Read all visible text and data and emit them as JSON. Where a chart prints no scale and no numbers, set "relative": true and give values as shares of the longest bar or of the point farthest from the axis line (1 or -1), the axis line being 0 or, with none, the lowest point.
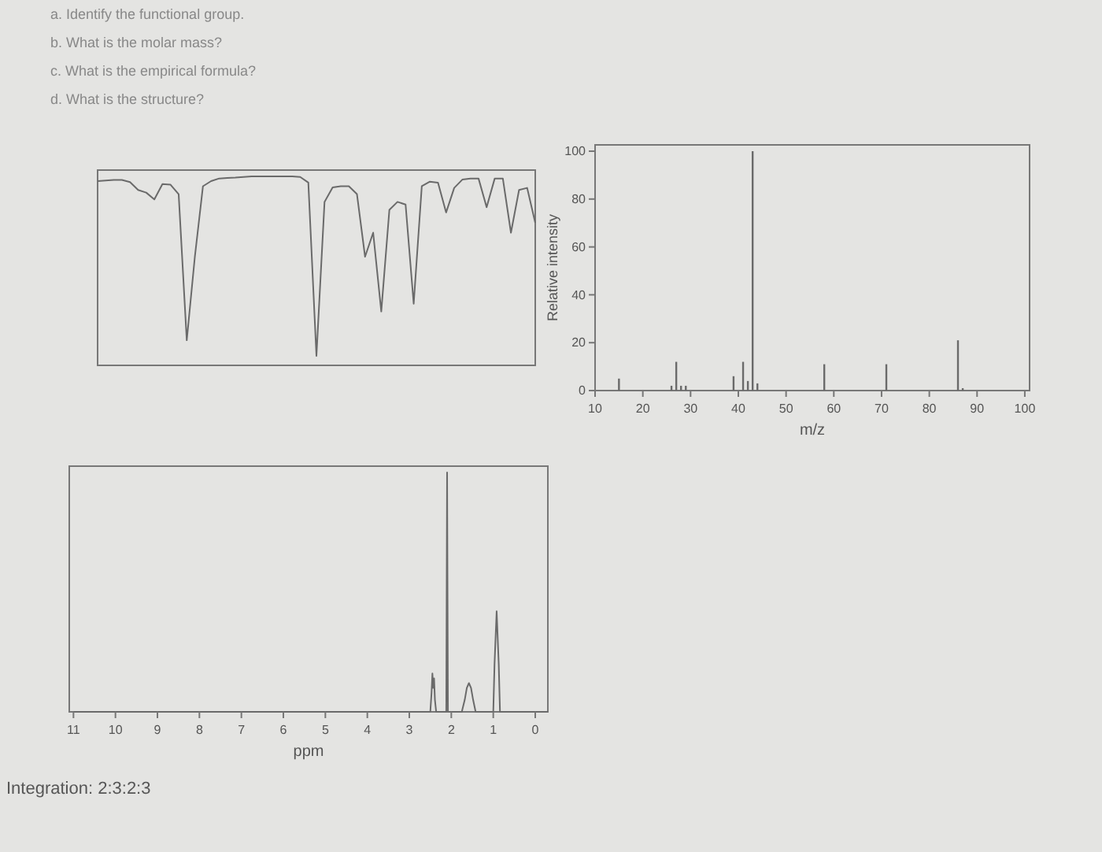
{
  "chart_data": [
    {
      "type": "line",
      "relative": true,
      "tick_labels": false,
      "color": "#6a6a6a",
      "annotations": [
        "a. Identify the functional group.",
        "b. What is the molar mass?",
        "c. What is the empirical formula?",
        "d. What is the structure?"
      ],
      "categories": [
        null,
        null,
        null,
        null,
        null,
        null,
        null,
        null,
        null,
        null,
        null,
        null,
        null,
        null,
        null,
        null,
        null,
        null,
        null,
        null,
        null,
        null,
        null,
        null,
        null,
        null,
        null,
        null,
        null,
        null,
        null,
        null,
        null,
        null,
        null,
        null,
        null,
        null,
        null,
        null,
        null,
        null,
        null,
        null,
        null,
        null,
        null,
        null,
        null,
        null,
        null,
        null,
        null,
        null,
        null
      ],
      "values": [
        0.975,
        0.978,
        0.981,
        0.981,
        0.97,
        0.928,
        0.914,
        0.878,
        0.959,
        0.956,
        0.906,
        0.133,
        0.575,
        0.948,
        0.975,
        0.989,
        0.992,
        0.994,
        0.997,
        1,
        1,
        1,
        1,
        1,
        1,
        0.997,
        0.967,
        0.05,
        0.865,
        0.942,
        0.948,
        0.948,
        0.906,
        0.575,
        0.702,
        0.285,
        0.823,
        0.865,
        0.851,
        0.326,
        0.948,
        0.972,
        0.967,
        0.809,
        0.939,
        0.983,
        0.989,
        0.989,
        0.837,
        0.989,
        0.989,
        0.702,
        0.928,
        0.939,
        0.754
      ]
    },
    {
      "type": "bar",
      "xlabel": "m/z",
      "ylabel": "Relative intensity",
      "color": "#6a6a6a",
      "xlim": [
        10,
        101
      ],
      "xticks": [
        10,
        20,
        30,
        40,
        50,
        60,
        70,
        80,
        90,
        100
      ],
      "ylim": [
        0,
        100
      ],
      "yticks": [
        0,
        20,
        40,
        60,
        80,
        100
      ],
      "x": [
        15,
        26,
        27,
        28,
        29,
        39,
        41,
        42,
        43,
        44,
        58,
        71,
        86,
        87
      ],
      "values": [
        5,
        2,
        12,
        2,
        2,
        6,
        12,
        4,
        100,
        3,
        11,
        11,
        21,
        1
      ]
    },
    {
      "type": "line",
      "relative": true,
      "tick_labels": "x",
      "xlabel": "ppm",
      "color": "#6a6a6a",
      "xlim": [
        11.1,
        -0.3
      ],
      "xticks": [
        11,
        10,
        9,
        8,
        7,
        6,
        5,
        4,
        3,
        2,
        1,
        0
      ],
      "annotations": [
        "Integration: 2:3:2:3"
      ],
      "x": [
        11,
        2.5,
        2.47,
        2.45,
        2.43,
        2.41,
        2.39,
        2.36,
        2.12,
        2.1,
        2.08,
        1.75,
        1.68,
        1.63,
        1.58,
        1.53,
        1.48,
        1.42,
        1.0,
        0.97,
        0.92,
        0.87,
        0.84,
        -0.3
      ],
      "values": [
        0,
        0,
        0.08,
        0.16,
        0.1,
        0.14,
        0.05,
        0,
        0,
        1,
        0,
        0,
        0.05,
        0.1,
        0.12,
        0.1,
        0.05,
        0,
        0,
        0.2,
        0.42,
        0.2,
        0,
        0
      ]
    }
  ]
}
